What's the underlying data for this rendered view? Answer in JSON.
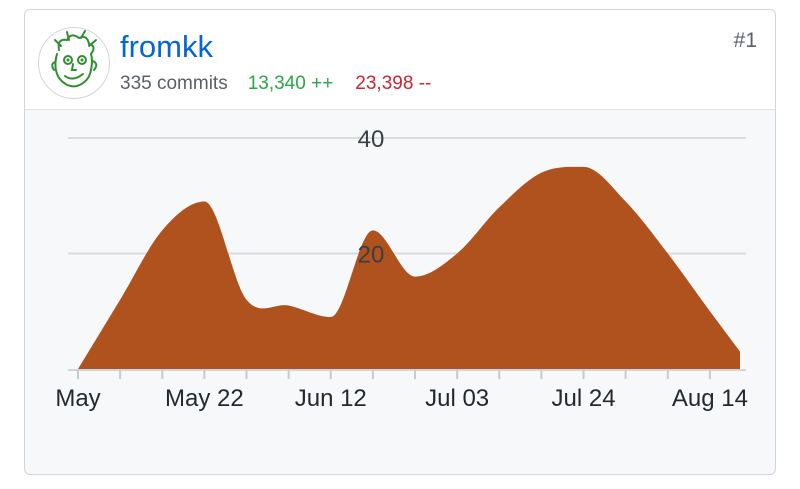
{
  "user": {
    "name": "fromkk",
    "commits_label": "335 commits",
    "additions_label": "13,340 ++",
    "deletions_label": "23,398 --",
    "rank": "#1",
    "avatar_icon": "avatar-sketch-face-icon"
  },
  "colors": {
    "area_fill": "#b0521e",
    "link": "#0366d6",
    "additions": "#28a745",
    "deletions": "#cb2431",
    "grid": "#d8dbe0",
    "axis_text": "#24292e",
    "avatar_green": "#2f8f2f"
  },
  "chart_data": {
    "type": "area",
    "title": "",
    "xlabel": "",
    "ylabel": "",
    "grid": true,
    "legend": "none",
    "x_range": [
      "2018-05-01",
      "2018-08-19"
    ],
    "ylim": [
      0,
      40
    ],
    "y_ticks": [
      {
        "value": 20,
        "label": "20"
      },
      {
        "value": 40,
        "label": "40"
      }
    ],
    "x_ticks": [
      {
        "date": "2018-05-01",
        "label": "May"
      },
      {
        "date": "2018-05-22",
        "label": "May 22"
      },
      {
        "date": "2018-06-12",
        "label": "Jun 12"
      },
      {
        "date": "2018-07-03",
        "label": "Jul 03"
      },
      {
        "date": "2018-07-24",
        "label": "Jul 24"
      },
      {
        "date": "2018-08-14",
        "label": "Aug 14"
      }
    ],
    "series": [
      {
        "x": [
          "2018-05-01",
          "2018-05-08",
          "2018-05-15",
          "2018-05-22",
          "2018-05-29",
          "2018-06-05",
          "2018-06-12",
          "2018-06-19",
          "2018-06-26",
          "2018-07-03",
          "2018-07-10",
          "2018-07-17",
          "2018-07-24",
          "2018-07-31",
          "2018-08-07",
          "2018-08-14",
          "2018-08-19"
        ],
        "y": [
          0,
          12,
          24,
          29,
          12,
          11,
          9,
          24,
          16,
          20,
          28,
          34,
          35,
          29,
          20,
          10,
          3
        ]
      }
    ]
  }
}
